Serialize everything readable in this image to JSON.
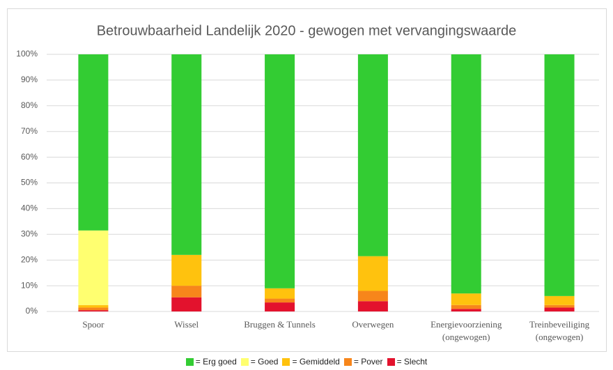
{
  "chart_data": {
    "type": "stacked_bar",
    "title": "Betrouwbaarheid Landelijk 2020 - gewogen met vervangingswaarde",
    "categories": [
      "Spoor",
      "Wissel",
      "Bruggen & Tunnels",
      "Overwegen",
      "Energievoorziening\n(ongewogen)",
      "Treinbeveiliging\n(ongewogen)"
    ],
    "series": [
      {
        "name": "= Slecht",
        "color": "#e3122d",
        "values": [
          0.5,
          5.5,
          3.5,
          4,
          1,
          1.5
        ]
      },
      {
        "name": "= Pover",
        "color": "#f7861b",
        "values": [
          1,
          4.5,
          1.5,
          4,
          1.5,
          1
        ]
      },
      {
        "name": "= Gemiddeld",
        "color": "#ffc20e",
        "values": [
          1,
          12,
          4,
          13.5,
          4.5,
          3.5
        ]
      },
      {
        "name": "= Goed",
        "color": "#ffff70",
        "values": [
          29,
          0,
          0,
          0,
          0,
          0
        ]
      },
      {
        "name": "= Erg goed",
        "color": "#33cc33",
        "values": [
          68.5,
          78,
          91,
          78.5,
          93,
          94
        ]
      }
    ],
    "legend_order": [
      4,
      3,
      2,
      1,
      0
    ],
    "ylim": [
      0,
      100
    ],
    "yticks": [
      {
        "value": 0,
        "label": "0%"
      },
      {
        "value": 10,
        "label": "10%"
      },
      {
        "value": 20,
        "label": "20%"
      },
      {
        "value": 30,
        "label": "30%"
      },
      {
        "value": 40,
        "label": "40%"
      },
      {
        "value": 50,
        "label": "50%"
      },
      {
        "value": 60,
        "label": "60%"
      },
      {
        "value": 70,
        "label": "70%"
      },
      {
        "value": 80,
        "label": "80%"
      },
      {
        "value": 90,
        "label": "90%"
      },
      {
        "value": 100,
        "label": "100%"
      }
    ],
    "grid": true
  }
}
